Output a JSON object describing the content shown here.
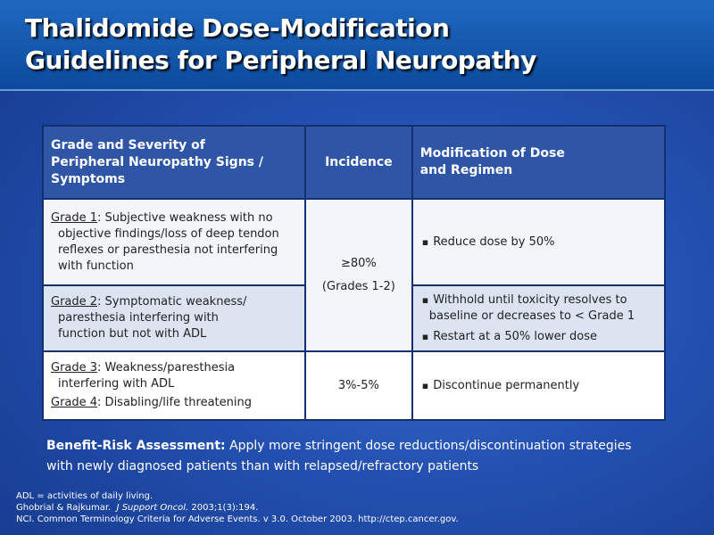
{
  "header": {
    "title_lines": [
      "Thalidomide Dose-Modification",
      "Guidelines for Peripheral Neuropathy"
    ]
  },
  "table": {
    "columns": [
      "Grade and Severity of Peripheral Neuropathy Signs / Symptoms",
      "Incidence",
      "Modification of Dose and Regimen"
    ],
    "rows": [
      {
        "grades": [
          {
            "grade": "Grade 1",
            "text": ": Subjective weakness with no objective findings/loss of deep tendon reflexes or paresthesia not interfering with function"
          }
        ],
        "modifications": [
          "Reduce dose by 50%"
        ]
      },
      {
        "grades": [
          {
            "grade": "Grade 2",
            "text": ": Symptomatic weakness/ paresthesia interfering with function but not with ADL"
          }
        ],
        "modifications": [
          "Withhold until toxicity resolves to baseline or decreases to < Grade 1",
          "Restart at a 50% lower dose"
        ]
      },
      {
        "grades": [
          {
            "grade": "Grade 3",
            "text": ": Weakness/paresthesia interfering with ADL"
          },
          {
            "grade": "Grade 4",
            "text": ": Disabling/life threatening"
          }
        ],
        "modifications": [
          "Discontinue permanently"
        ]
      }
    ],
    "incidence": [
      {
        "value": "≥80%",
        "note": "(Grades 1-2)"
      },
      {
        "value": "3%-5%"
      }
    ]
  },
  "assessment": {
    "label": "Benefit-Risk Assessment:",
    "text": "Apply more stringent dose reductions/discontinuation strategies with newly diagnosed patients than with relapsed/refractory  patients"
  },
  "footnotes": {
    "abbreviation": "ADL = activities of daily living.",
    "reference1": {
      "authors": "Ghobrial & Rajkumar.",
      "journal": "J Support Oncol.",
      "details": "2003;1(3):194."
    },
    "reference2": "NCI. Common Terminology Criteria for Adverse Events. v 3.0. October 2003. http://ctep.cancer.gov."
  }
}
